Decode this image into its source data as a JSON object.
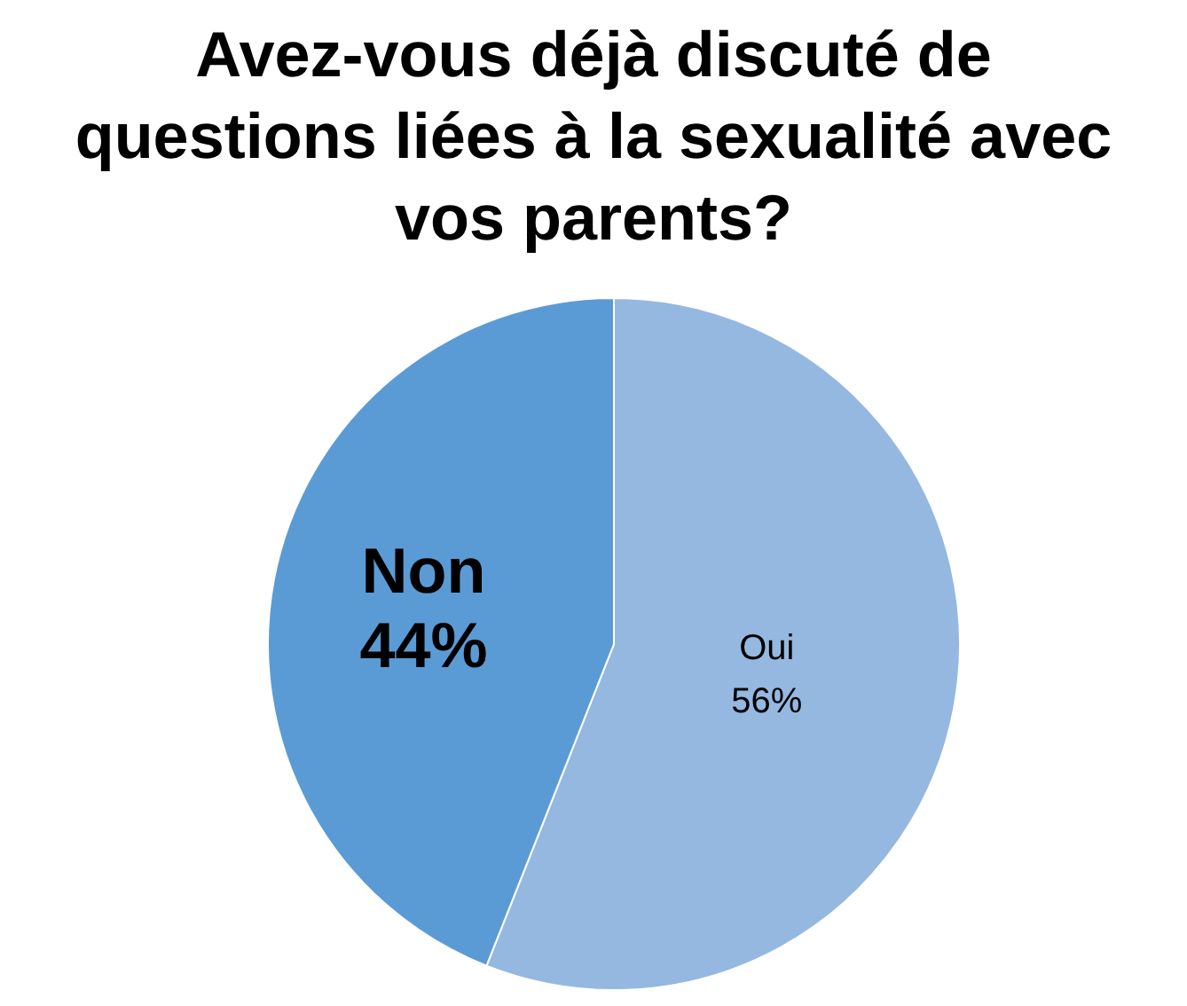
{
  "chart_data": {
    "type": "pie",
    "title": "Avez-vous déjà discuté de questions liées à la sexualité avec vos parents?",
    "categories": [
      "Oui",
      "Non"
    ],
    "values": [
      56,
      44
    ],
    "colors": [
      "#95b8e1",
      "#5b9bd5"
    ],
    "value_labels": [
      "56%",
      "44%"
    ],
    "legend": false
  }
}
